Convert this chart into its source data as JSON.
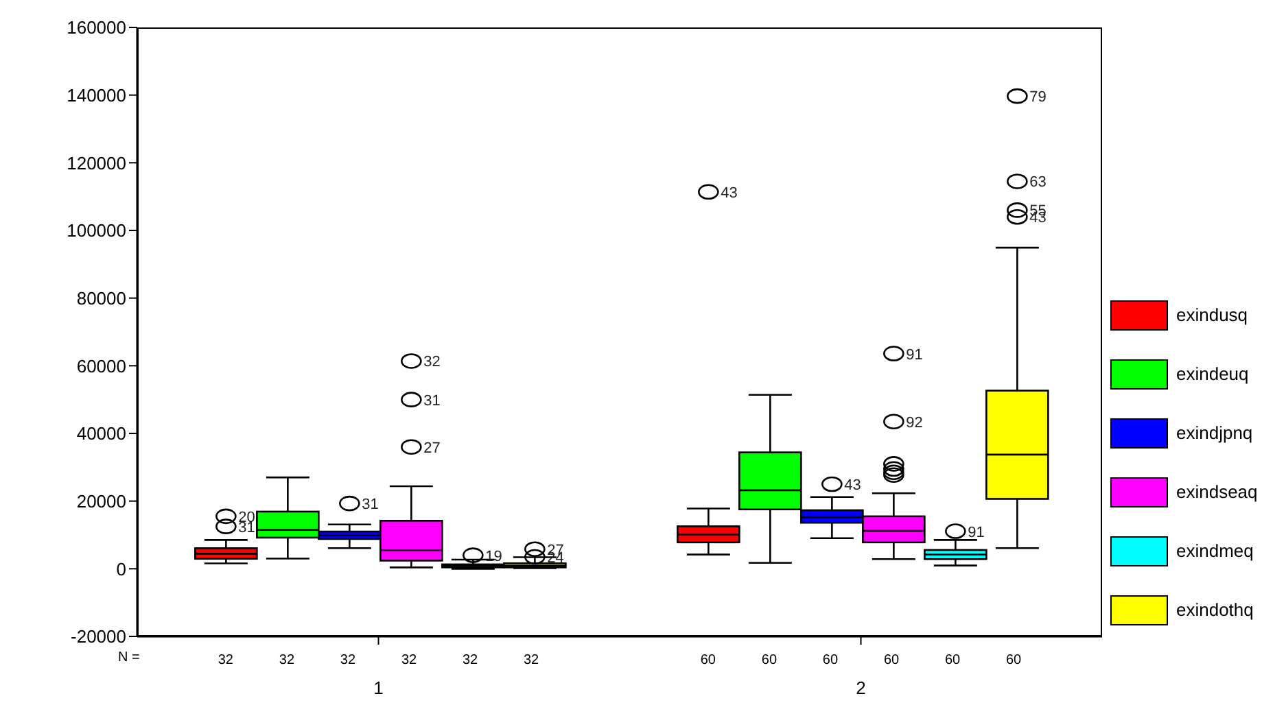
{
  "chart_data": {
    "type": "box",
    "categories": [
      "1",
      "2"
    ],
    "ylim": [
      -20000,
      160000
    ],
    "yticks": [
      -20000,
      0,
      20000,
      40000,
      60000,
      80000,
      100000,
      120000,
      140000,
      160000
    ],
    "grid": false,
    "legend": "right",
    "series": [
      {
        "name": "exindusq",
        "color": "#ff0000",
        "boxes": [
          {
            "low": 1600,
            "q1": 2950,
            "median": 4450,
            "q3": 6075,
            "high": 8500,
            "outliers": [
              12500,
              15500
            ]
          },
          {
            "low": 4200,
            "q1": 7800,
            "median": 10100,
            "q3": 12550,
            "high": 17800,
            "outliers": [
              111400
            ]
          }
        ]
      },
      {
        "name": "exindeuq",
        "color": "#00ff00",
        "boxes": [
          {
            "low": 3000,
            "q1": 9200,
            "median": 11500,
            "q3": 16900,
            "high": 27000
          },
          {
            "low": 1750,
            "q1": 17550,
            "median": 23200,
            "q3": 34400,
            "high": 51400
          }
        ]
      },
      {
        "name": "exindjpnq",
        "color": "#0000ff",
        "boxes": [
          {
            "low": 6100,
            "q1": 8800,
            "median": 9850,
            "q3": 11000,
            "high": 13100,
            "outliers": [
              19300
            ]
          },
          {
            "low": 9050,
            "q1": 13600,
            "median": 15250,
            "q3": 17300,
            "high": 21200,
            "outliers": [
              25000
            ]
          }
        ]
      },
      {
        "name": "exindseaq",
        "color": "#ff00ff",
        "boxes": [
          {
            "low": 400,
            "q1": 2400,
            "median": 5500,
            "q3": 14200,
            "high": 24400,
            "outliers": [
              36000,
              50000,
              61400
            ]
          },
          {
            "low": 2850,
            "q1": 7800,
            "median": 11200,
            "q3": 15500,
            "high": 22300,
            "outliers": [
              43500,
              63600,
              27700,
              28500,
              29500,
              31000
            ]
          }
        ]
      },
      {
        "name": "exindmeq",
        "color": "#00ffff",
        "boxes": [
          {
            "low": 0,
            "q1": 400,
            "median": 900,
            "q3": 1300,
            "high": 2700,
            "outliers": [
              4000
            ]
          },
          {
            "low": 950,
            "q1": 2850,
            "median": 4200,
            "q3": 5550,
            "high": 8500,
            "outliers": [
              11100
            ]
          }
        ]
      },
      {
        "name": "exindothq",
        "color": "#ffff00",
        "boxes": [
          {
            "low": 200,
            "q1": 400,
            "median": 900,
            "q3": 1600,
            "high": 3400,
            "outliers": [
              3500,
              5800
            ]
          },
          {
            "low": 6100,
            "q1": 20650,
            "median": 33750,
            "q3": 52650,
            "high": 94900,
            "outliers": [
              104000,
              106000,
              114500,
              139700
            ]
          }
        ]
      }
    ],
    "annotations": [
      "N =",
      "32",
      "32",
      "32",
      "32",
      "32",
      "32",
      "60",
      "60",
      "60",
      "60",
      "60",
      "60",
      "31",
      "19",
      "43",
      "43",
      "91",
      "31",
      "20",
      "24",
      "27",
      "27",
      "31",
      "32",
      "43",
      "55",
      "63",
      "79",
      "92",
      "91"
    ]
  }
}
